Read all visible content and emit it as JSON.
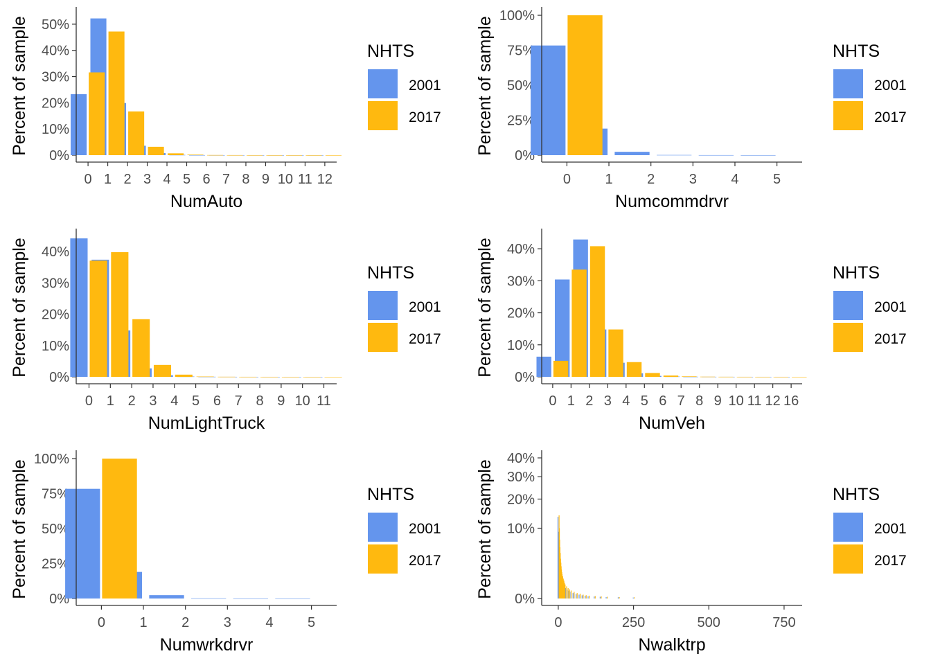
{
  "colors": {
    "2001": "#6495ED",
    "2017": "#FFB90F"
  },
  "legend": {
    "title": "NHTS",
    "entries": [
      "2001",
      "2017"
    ]
  },
  "chart_data": [
    {
      "type": "bar",
      "xlabel": "NumAuto",
      "ylabel": "Percent of sample",
      "ylim": [
        0,
        55
      ],
      "y_ticks": [
        "0%",
        "10%",
        "20%",
        "30%",
        "40%",
        "50%"
      ],
      "x_ticks": [
        "0",
        "1",
        "2",
        "3",
        "4",
        "5",
        "6",
        "7",
        "8",
        "9",
        "10",
        "11",
        "12"
      ],
      "x_values": [
        0,
        1,
        2,
        3,
        4,
        5,
        6,
        7,
        8,
        9,
        10,
        11,
        12
      ],
      "series": [
        {
          "name": "2001",
          "values": [
            23.3,
            52.2,
            19.9,
            3.6,
            0.8,
            0.1,
            0.03,
            0.01,
            0.01,
            0.005,
            0.002,
            0.001,
            0.001
          ]
        },
        {
          "name": "2017",
          "values": [
            31.6,
            47.2,
            16.7,
            3.2,
            0.7,
            0.2,
            0.05,
            0.02,
            0.01,
            0.005,
            0.002,
            0.001,
            0.001
          ]
        }
      ]
    },
    {
      "type": "bar",
      "xlabel": "Numcommdrvr",
      "ylabel": "Percent of sample",
      "ylim": [
        0,
        103
      ],
      "y_ticks": [
        "0%",
        "25%",
        "50%",
        "75%",
        "100%"
      ],
      "x_ticks": [
        "0",
        "1",
        "2",
        "3",
        "4",
        "5"
      ],
      "x_values": [
        0,
        1,
        2,
        3,
        4,
        5
      ],
      "series": [
        {
          "name": "2001",
          "values": [
            78.4,
            19.0,
            2.4,
            0.15,
            0.04,
            0.01
          ]
        },
        {
          "name": "2017",
          "values": [
            100,
            0,
            0,
            0,
            0,
            0
          ]
        }
      ]
    },
    {
      "type": "bar",
      "xlabel": "NumLightTruck",
      "ylabel": "Percent of sample",
      "ylim": [
        0,
        46
      ],
      "y_ticks": [
        "0%",
        "10%",
        "20%",
        "30%",
        "40%"
      ],
      "x_ticks": [
        "0",
        "1",
        "2",
        "3",
        "4",
        "5",
        "6",
        "7",
        "8",
        "9",
        "10",
        "11"
      ],
      "x_values": [
        0,
        1,
        2,
        3,
        4,
        5,
        6,
        7,
        8,
        9,
        10,
        11
      ],
      "series": [
        {
          "name": "2001",
          "values": [
            44.2,
            37.4,
            14.8,
            2.7,
            0.5,
            0.1,
            0.03,
            0.01,
            0.005,
            0.002,
            0.001,
            0.001
          ]
        },
        {
          "name": "2017",
          "values": [
            37.1,
            39.8,
            18.4,
            3.8,
            0.7,
            0.1,
            0.03,
            0.01,
            0.005,
            0.002,
            0.001,
            0.001
          ]
        }
      ]
    },
    {
      "type": "bar",
      "xlabel": "NumVeh",
      "ylabel": "Percent of sample",
      "ylim": [
        0,
        45
      ],
      "y_ticks": [
        "0%",
        "10%",
        "20%",
        "30%",
        "40%"
      ],
      "x_ticks": [
        "0",
        "1",
        "2",
        "3",
        "4",
        "5",
        "6",
        "7",
        "8",
        "9",
        "10",
        "11",
        "12",
        "16"
      ],
      "x_values": [
        0,
        1,
        2,
        3,
        4,
        5,
        6,
        7,
        8,
        9,
        10,
        11,
        12,
        16
      ],
      "series": [
        {
          "name": "2001",
          "values": [
            6.3,
            30.4,
            42.9,
            14.8,
            4.4,
            1.1,
            0.3,
            0.1,
            0.04,
            0.02,
            0.01,
            0.005,
            0.005,
            0.002
          ]
        },
        {
          "name": "2017",
          "values": [
            5.0,
            33.5,
            40.8,
            14.8,
            4.6,
            1.2,
            0.4,
            0.15,
            0.05,
            0.02,
            0.01,
            0.005,
            0.005,
            0.002
          ]
        }
      ]
    },
    {
      "type": "bar",
      "xlabel": "Numwrkdrvr",
      "ylabel": "Percent of sample",
      "ylim": [
        0,
        103
      ],
      "y_ticks": [
        "0%",
        "25%",
        "50%",
        "75%",
        "100%"
      ],
      "x_ticks": [
        "0",
        "1",
        "2",
        "3",
        "4",
        "5"
      ],
      "x_values": [
        0,
        1,
        2,
        3,
        4,
        5
      ],
      "series": [
        {
          "name": "2001",
          "values": [
            78.4,
            19.0,
            2.4,
            0.15,
            0.04,
            0.01
          ]
        },
        {
          "name": "2017",
          "values": [
            100,
            0,
            0,
            0,
            0,
            0
          ]
        }
      ]
    },
    {
      "type": "bar",
      "xlabel": "Nwalktrp",
      "ylabel": "Percent of sample",
      "y_scale": "sqrt",
      "ylim": [
        0,
        42
      ],
      "y_ticks": [
        "0%",
        "10%",
        "20%",
        "30%",
        "40%"
      ],
      "y_tick_values": [
        0,
        10,
        20,
        30,
        40
      ],
      "x_ticks": [
        "0",
        "250",
        "500",
        "750"
      ],
      "x_tick_values": [
        0,
        250,
        500,
        750
      ],
      "xlim": [
        -55,
        810
      ],
      "series": [
        {
          "name": "2001",
          "x": [
            0,
            1,
            2,
            3,
            4,
            5,
            6,
            7,
            8,
            9,
            10,
            12,
            14,
            16,
            18,
            20,
            25,
            30,
            35,
            40,
            50,
            60,
            70,
            80,
            90,
            100,
            120,
            140,
            160,
            200,
            250
          ],
          "values": [
            13.5,
            9.0,
            6.5,
            5.0,
            3.6,
            2.8,
            2.2,
            1.8,
            1.4,
            1.2,
            1.0,
            0.8,
            0.6,
            0.5,
            0.4,
            0.3,
            0.22,
            0.16,
            0.12,
            0.09,
            0.06,
            0.04,
            0.03,
            0.02,
            0.015,
            0.01,
            0.008,
            0.006,
            0.004,
            0.003,
            0.002
          ]
        },
        {
          "name": "2017",
          "x": [
            0,
            1,
            2,
            3,
            4,
            5,
            6,
            7,
            8,
            9,
            10,
            12,
            14,
            16,
            18,
            20,
            25,
            30,
            35,
            40,
            50,
            60,
            70,
            80,
            90,
            100,
            120,
            140,
            160,
            200,
            250
          ],
          "values": [
            14.0,
            10.0,
            7.0,
            5.3,
            4.2,
            3.2,
            2.6,
            2.1,
            1.7,
            1.4,
            1.2,
            1.0,
            0.8,
            0.65,
            0.5,
            0.4,
            0.3,
            0.22,
            0.17,
            0.13,
            0.09,
            0.06,
            0.045,
            0.03,
            0.022,
            0.016,
            0.012,
            0.009,
            0.006,
            0.004,
            0.003
          ]
        }
      ]
    }
  ]
}
